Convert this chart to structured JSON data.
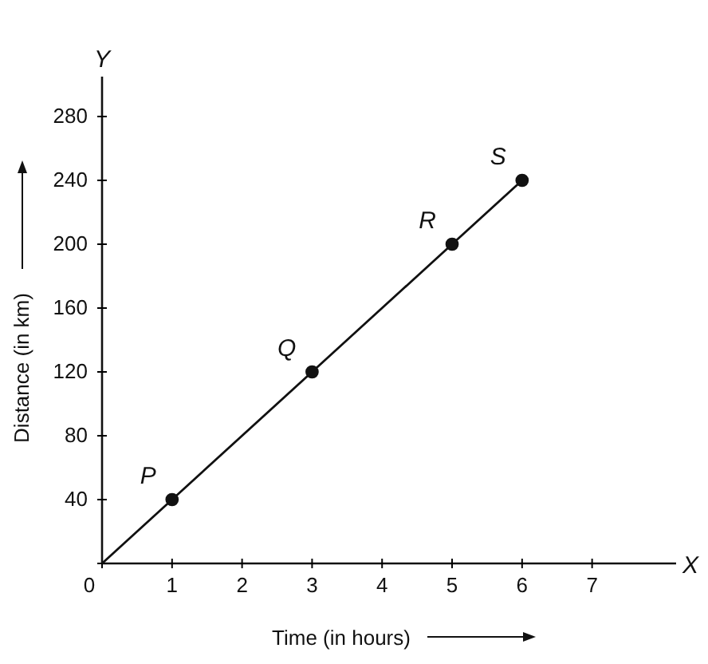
{
  "chart_data": {
    "type": "line",
    "xlabel": "Time (in hours)",
    "ylabel": "Distance (in km)",
    "xlim": [
      0,
      8.2
    ],
    "ylim": [
      0,
      305
    ],
    "xticks": [
      0,
      1,
      2,
      3,
      4,
      5,
      6,
      7
    ],
    "yticks": [
      {
        "value": 0,
        "label": null
      },
      40,
      80,
      120,
      160,
      200,
      240,
      280
    ],
    "series": [
      {
        "color": "#111111",
        "x": [
          0,
          1,
          3,
          5,
          6
        ],
        "values": [
          0,
          40,
          120,
          200,
          240
        ],
        "marker": "none"
      },
      {
        "type": "scatter",
        "color": "#111111",
        "x": [
          1,
          3,
          5,
          6
        ],
        "values": [
          40,
          120,
          200,
          240
        ],
        "marker": "circle"
      }
    ],
    "annotations": [
      {
        "text": "P",
        "x": 1,
        "y": 40
      },
      {
        "text": "Q",
        "x": 3,
        "y": 120
      },
      {
        "text": "R",
        "x": 5,
        "y": 200
      },
      {
        "text": "S",
        "x": 6,
        "y": 240
      },
      "X",
      "Y"
    ],
    "grid": false
  }
}
